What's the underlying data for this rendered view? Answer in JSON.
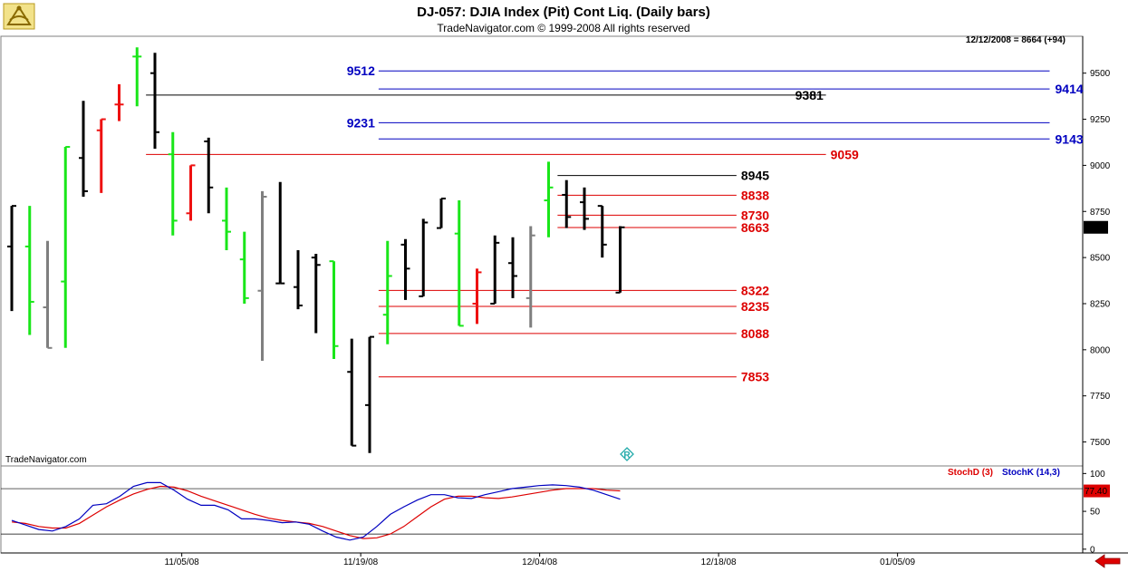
{
  "header": {
    "title": "DJ-057:  DJIA Index (Pit) Cont Liq.  (Daily bars)",
    "subtitle": "TradeNavigator.com © 1999-2008 All rights reserved",
    "date_readout": "12/12/2008 = 8664 (+94)",
    "watermark": "TradeNavigator.com"
  },
  "colors": {
    "up_bar": "#19e619",
    "down_bar": "#ee1111",
    "flat_bar": "#7f7f7f",
    "price_bar": "#000000",
    "blue_level": "#0000c0",
    "red_level": "#dd0000",
    "black_level": "#000000",
    "stoch_d": "#dd0000",
    "stoch_k": "#0000c0",
    "nav_arrow": "#dd0000",
    "r_icon": "#22aaaa"
  },
  "icons": {
    "logo": "sextant-logo-icon",
    "nav": "left-arrow-icon",
    "marker": "r-diamond-icon"
  },
  "chart_data": [
    {
      "type": "bar",
      "subtype": "ohlc",
      "ylim": [
        7370,
        9700
      ],
      "yticks": [
        7500,
        7750,
        8000,
        8250,
        8500,
        8750,
        9000,
        9250,
        9500
      ],
      "ytick_labels": [
        "7500",
        "7750",
        "8000",
        "8250",
        "8500",
        "8750",
        "9000",
        "9250",
        "9500"
      ],
      "xticks": [
        {
          "label": "11/05/08",
          "index": 9.5
        },
        {
          "label": "11/19/08",
          "index": 19.5
        },
        {
          "label": "12/04/08",
          "index": 29.5
        },
        {
          "label": "12/18/08",
          "index": 39.5
        },
        {
          "label": "01/05/09",
          "index": 49.5
        }
      ],
      "x_slots": 60,
      "last_price_label": "8664",
      "bars": [
        {
          "o": 8560,
          "h": 8780,
          "l": 8210,
          "c": 8780,
          "g": "k"
        },
        {
          "o": 8560,
          "h": 8780,
          "l": 8080,
          "c": 8260,
          "g": "up"
        },
        {
          "o": 8230,
          "h": 8590,
          "l": 8010,
          "c": 8010,
          "g": "flat"
        },
        {
          "o": 8370,
          "h": 9100,
          "l": 8010,
          "c": 9100,
          "g": "up"
        },
        {
          "o": 9040,
          "h": 9350,
          "l": 8830,
          "c": 8860,
          "g": "k"
        },
        {
          "o": 9190,
          "h": 9250,
          "l": 8850,
          "c": 9250,
          "g": "down"
        },
        {
          "o": 9330,
          "h": 9440,
          "l": 9240,
          "c": 9330,
          "g": "down"
        },
        {
          "o": 9590,
          "h": 9640,
          "l": 9320,
          "c": 9590,
          "g": "up"
        },
        {
          "o": 9500,
          "h": 9610,
          "l": 9090,
          "c": 9180,
          "g": "k"
        },
        {
          "o": 9060,
          "h": 9180,
          "l": 8620,
          "c": 8700,
          "g": "up"
        },
        {
          "o": 8740,
          "h": 9000,
          "l": 8700,
          "c": 9000,
          "g": "down"
        },
        {
          "o": 9130,
          "h": 9150,
          "l": 8740,
          "c": 8880,
          "g": "k"
        },
        {
          "o": 8700,
          "h": 8880,
          "l": 8540,
          "c": 8640,
          "g": "up"
        },
        {
          "o": 8490,
          "h": 8640,
          "l": 8250,
          "c": 8280,
          "g": "up"
        },
        {
          "o": 8320,
          "h": 8860,
          "l": 7940,
          "c": 8830,
          "g": "flat"
        },
        {
          "o": 8360,
          "h": 8910,
          "l": 8360,
          "c": 8360,
          "g": "k"
        },
        {
          "o": 8340,
          "h": 8540,
          "l": 8220,
          "c": 8240,
          "g": "k"
        },
        {
          "o": 8500,
          "h": 8520,
          "l": 8090,
          "c": 8460,
          "g": "k"
        },
        {
          "o": 8480,
          "h": 8480,
          "l": 7950,
          "c": 8020,
          "g": "up"
        },
        {
          "o": 7880,
          "h": 8060,
          "l": 7480,
          "c": 7480,
          "g": "k"
        },
        {
          "o": 7700,
          "h": 8070,
          "l": 7440,
          "c": 8070,
          "g": "k"
        },
        {
          "o": 8190,
          "h": 8590,
          "l": 8030,
          "c": 8400,
          "g": "up"
        },
        {
          "o": 8570,
          "h": 8600,
          "l": 8270,
          "c": 8440,
          "g": "k"
        },
        {
          "o": 8290,
          "h": 8710,
          "l": 8290,
          "c": 8690,
          "g": "k"
        },
        {
          "o": 8660,
          "h": 8820,
          "l": 8660,
          "c": 8820,
          "g": "k"
        },
        {
          "o": 8630,
          "h": 8810,
          "l": 8130,
          "c": 8130,
          "g": "up"
        },
        {
          "o": 8250,
          "h": 8440,
          "l": 8140,
          "c": 8420,
          "g": "down"
        },
        {
          "o": 8250,
          "h": 8620,
          "l": 8250,
          "c": 8580,
          "g": "k"
        },
        {
          "o": 8470,
          "h": 8610,
          "l": 8280,
          "c": 8400,
          "g": "k"
        },
        {
          "o": 8280,
          "h": 8670,
          "l": 8120,
          "c": 8620,
          "g": "flat"
        },
        {
          "o": 8810,
          "h": 9020,
          "l": 8610,
          "c": 8880,
          "g": "up"
        },
        {
          "o": 8840,
          "h": 8920,
          "l": 8660,
          "c": 8720,
          "g": "k"
        },
        {
          "o": 8800,
          "h": 8880,
          "l": 8650,
          "c": 8710,
          "g": "k"
        },
        {
          "o": 8780,
          "h": 8780,
          "l": 8500,
          "c": 8570,
          "g": "k"
        },
        {
          "o": 8310,
          "h": 8670,
          "l": 8310,
          "c": 8664,
          "g": "k"
        }
      ],
      "levels": [
        {
          "value": 9512,
          "label": "9512",
          "color": "blue",
          "from": 20.5,
          "to": 58,
          "label_side": "left"
        },
        {
          "value": 9414,
          "label": "9414",
          "color": "blue",
          "from": 20.5,
          "to": 58,
          "label_side": "right"
        },
        {
          "value": 9381,
          "label": "9381",
          "color": "black",
          "from": 7.5,
          "to": 45.5,
          "label_side": "end"
        },
        {
          "value": 9231,
          "label": "9231",
          "color": "blue",
          "from": 20.5,
          "to": 58,
          "label_side": "left"
        },
        {
          "value": 9143,
          "label": "9143",
          "color": "blue",
          "from": 20.5,
          "to": 58,
          "label_side": "right"
        },
        {
          "value": 9059,
          "label": "9059",
          "color": "red",
          "from": 7.5,
          "to": 45.5,
          "label_side": "end"
        },
        {
          "value": 8945,
          "label": "8945",
          "color": "black",
          "from": 30.5,
          "to": 40.5,
          "label_side": "end"
        },
        {
          "value": 8838,
          "label": "8838",
          "color": "red",
          "from": 30.5,
          "to": 40.5,
          "label_side": "end"
        },
        {
          "value": 8730,
          "label": "8730",
          "color": "red",
          "from": 30.5,
          "to": 40.5,
          "label_side": "end"
        },
        {
          "value": 8663,
          "label": "8663",
          "color": "red",
          "from": 30.5,
          "to": 40.5,
          "label_side": "end"
        },
        {
          "value": 8322,
          "label": "8322",
          "color": "red",
          "from": 20.5,
          "to": 40.5,
          "label_side": "end"
        },
        {
          "value": 8235,
          "label": "8235",
          "color": "red",
          "from": 20.5,
          "to": 40.5,
          "label_side": "end"
        },
        {
          "value": 8088,
          "label": "8088",
          "color": "red",
          "from": 20.5,
          "to": 40.5,
          "label_side": "end"
        },
        {
          "value": 7853,
          "label": "7853",
          "color": "red",
          "from": 20.5,
          "to": 40.5,
          "label_side": "end"
        }
      ]
    },
    {
      "type": "line",
      "ylim": [
        -5,
        110
      ],
      "yticks": [
        0,
        50,
        100
      ],
      "ytick_labels": [
        "0",
        "50",
        "100"
      ],
      "reference_lines": [
        80,
        20
      ],
      "legend": [
        "StochD (3)",
        "StochK (14,3)"
      ],
      "last_value_label": "77.40",
      "series": [
        {
          "name": "StochD (3)",
          "color": "red",
          "values": [
            36,
            34,
            30,
            28,
            28,
            34,
            45,
            56,
            65,
            73,
            79,
            83,
            82,
            77,
            70,
            64,
            58,
            52,
            46,
            41,
            38,
            36,
            34,
            30,
            24,
            18,
            14,
            15,
            20,
            30,
            43,
            56,
            66,
            70,
            70,
            68,
            67,
            69,
            72,
            75,
            78,
            80,
            80,
            80,
            78,
            77
          ]
        },
        {
          "name": "StochK (14,3)",
          "color": "blue",
          "values": [
            38,
            32,
            26,
            24,
            30,
            40,
            58,
            60,
            70,
            83,
            88,
            88,
            78,
            66,
            58,
            58,
            52,
            40,
            40,
            38,
            35,
            36,
            33,
            24,
            16,
            12,
            16,
            30,
            46,
            56,
            65,
            72,
            72,
            68,
            67,
            72,
            76,
            80,
            82,
            84,
            85,
            84,
            82,
            78,
            72,
            66
          ]
        }
      ]
    }
  ]
}
